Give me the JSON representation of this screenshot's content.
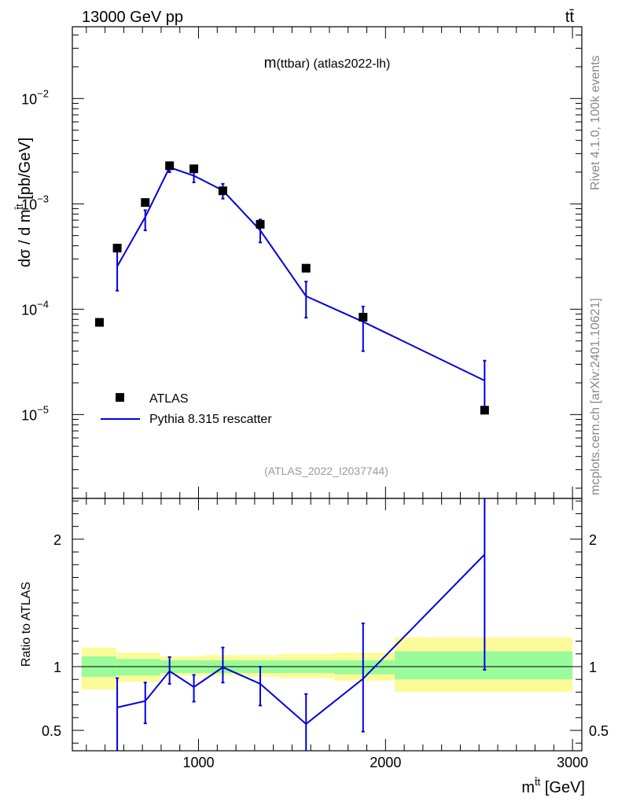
{
  "header": {
    "left": "13000 GeV pp",
    "right_base": "t",
    "right_bar": "t̄"
  },
  "side": {
    "top": "Rivet 4.1.0,  100k events",
    "bottom": "mcplots.cern.ch [arXiv:2401.10621]"
  },
  "chart_data": [
    {
      "type": "scatter",
      "panel": "main",
      "title": "m(ttbar) (atlas2022-lh)",
      "title_main": "m",
      "title_rest": "(ttbar) (atlas2022-lh)",
      "watermark": "(ATLAS_2022_I2037744)",
      "ylabel": "dσ / d m",
      "ylabel_sup": "t̄t",
      "ylabel_unit": " [pb/GeV]",
      "yscale": "log",
      "ylim": [
        1.6e-06,
        0.048
      ],
      "xlim": [
        325,
        3050
      ],
      "yticks": [
        {
          "value": 1e-05,
          "mantissa": "10",
          "exp": "−5"
        },
        {
          "value": 0.0001,
          "mantissa": "10",
          "exp": "−4"
        },
        {
          "value": 0.001,
          "mantissa": "10",
          "exp": "−3"
        },
        {
          "value": 0.01,
          "mantissa": "10",
          "exp": "−2"
        }
      ],
      "legend": [
        {
          "label": "ATLAS",
          "marker": "square",
          "color": "#000000"
        },
        {
          "label": "Pythia 8.315 rescatter",
          "marker": "line",
          "color": "#0000dd"
        }
      ],
      "series": [
        {
          "name": "ATLAS",
          "color": "#000000",
          "x": [
            470,
            565,
            715,
            845,
            975,
            1130,
            1330,
            1575,
            1880,
            2530
          ],
          "y": [
            7.5e-05,
            0.00038,
            0.00103,
            0.0023,
            0.00215,
            0.00133,
            0.00064,
            0.000245,
            8.4e-05,
            1.1e-05
          ]
        },
        {
          "name": "Pythia 8.315 rescatter",
          "color": "#0000dd",
          "x": [
            565,
            715,
            845,
            975,
            1130,
            1330,
            1575,
            1880,
            2530
          ],
          "y": [
            0.000255,
            0.00075,
            0.00222,
            0.00185,
            0.00134,
            0.00056,
            0.000133,
            7.6e-05,
            2.1e-05
          ],
          "err_low": [
            0.00015,
            0.00056,
            0.002,
            0.0016,
            0.00112,
            0.00043,
            8.3e-05,
            4e-05,
            1.1e-05
          ],
          "err_high": [
            0.00036,
            0.00087,
            0.00242,
            0.0021,
            0.00155,
            0.00071,
            0.000183,
            0.000106,
            3.25e-05
          ]
        }
      ]
    },
    {
      "type": "line",
      "panel": "ratio",
      "ylabel": "Ratio to ATLAS",
      "ylim": [
        0.34,
        2.32
      ],
      "xlim": [
        325,
        3050
      ],
      "yticks": [
        0.5,
        1,
        2
      ],
      "ytick_labels": [
        "0.5",
        "1",
        "2"
      ],
      "xlabel": "m",
      "xlabel_sup": "t̄t",
      "xlabel_unit": " [GeV]",
      "xticks": [
        1000,
        2000,
        3000
      ],
      "xtick_labels": [
        "1000",
        "2000",
        "3000"
      ],
      "reference": 1,
      "bands": [
        {
          "x0": 375,
          "x1": 560,
          "inner": [
            0.92,
            1.08
          ],
          "outer": [
            0.82,
            1.15
          ]
        },
        {
          "x0": 560,
          "x1": 795,
          "inner": [
            0.93,
            1.06
          ],
          "outer": [
            0.88,
            1.11
          ]
        },
        {
          "x0": 795,
          "x1": 1025,
          "inner": [
            0.95,
            1.05
          ],
          "outer": [
            0.93,
            1.08
          ]
        },
        {
          "x0": 1025,
          "x1": 1225,
          "inner": [
            0.95,
            1.05
          ],
          "outer": [
            0.93,
            1.09
          ]
        },
        {
          "x0": 1225,
          "x1": 1425,
          "inner": [
            0.95,
            1.05
          ],
          "outer": [
            0.92,
            1.09
          ]
        },
        {
          "x0": 1425,
          "x1": 1725,
          "inner": [
            0.95,
            1.05
          ],
          "outer": [
            0.91,
            1.1
          ]
        },
        {
          "x0": 1725,
          "x1": 2050,
          "inner": [
            0.94,
            1.05
          ],
          "outer": [
            0.89,
            1.11
          ]
        },
        {
          "x0": 2050,
          "x1": 3000,
          "inner": [
            0.9,
            1.12
          ],
          "outer": [
            0.8,
            1.23
          ]
        }
      ],
      "band_colors": {
        "inner": "#9afb9a",
        "outer": "#fbfb9a"
      },
      "series": [
        {
          "name": "Pythia 8.315 rescatter",
          "color": "#0000dd",
          "x": [
            565,
            715,
            845,
            975,
            1130,
            1330,
            1575,
            1880,
            2530
          ],
          "y": [
            0.68,
            0.73,
            0.965,
            0.84,
            0.995,
            0.865,
            0.55,
            0.905,
            1.88
          ],
          "err_low": [
            0.34,
            0.555,
            0.865,
            0.725,
            0.875,
            0.695,
            0.34,
            0.49,
            0.975
          ],
          "err_high": [
            0.91,
            0.875,
            1.075,
            0.935,
            1.15,
            1.0,
            0.785,
            1.34,
            2.32
          ]
        }
      ]
    }
  ]
}
